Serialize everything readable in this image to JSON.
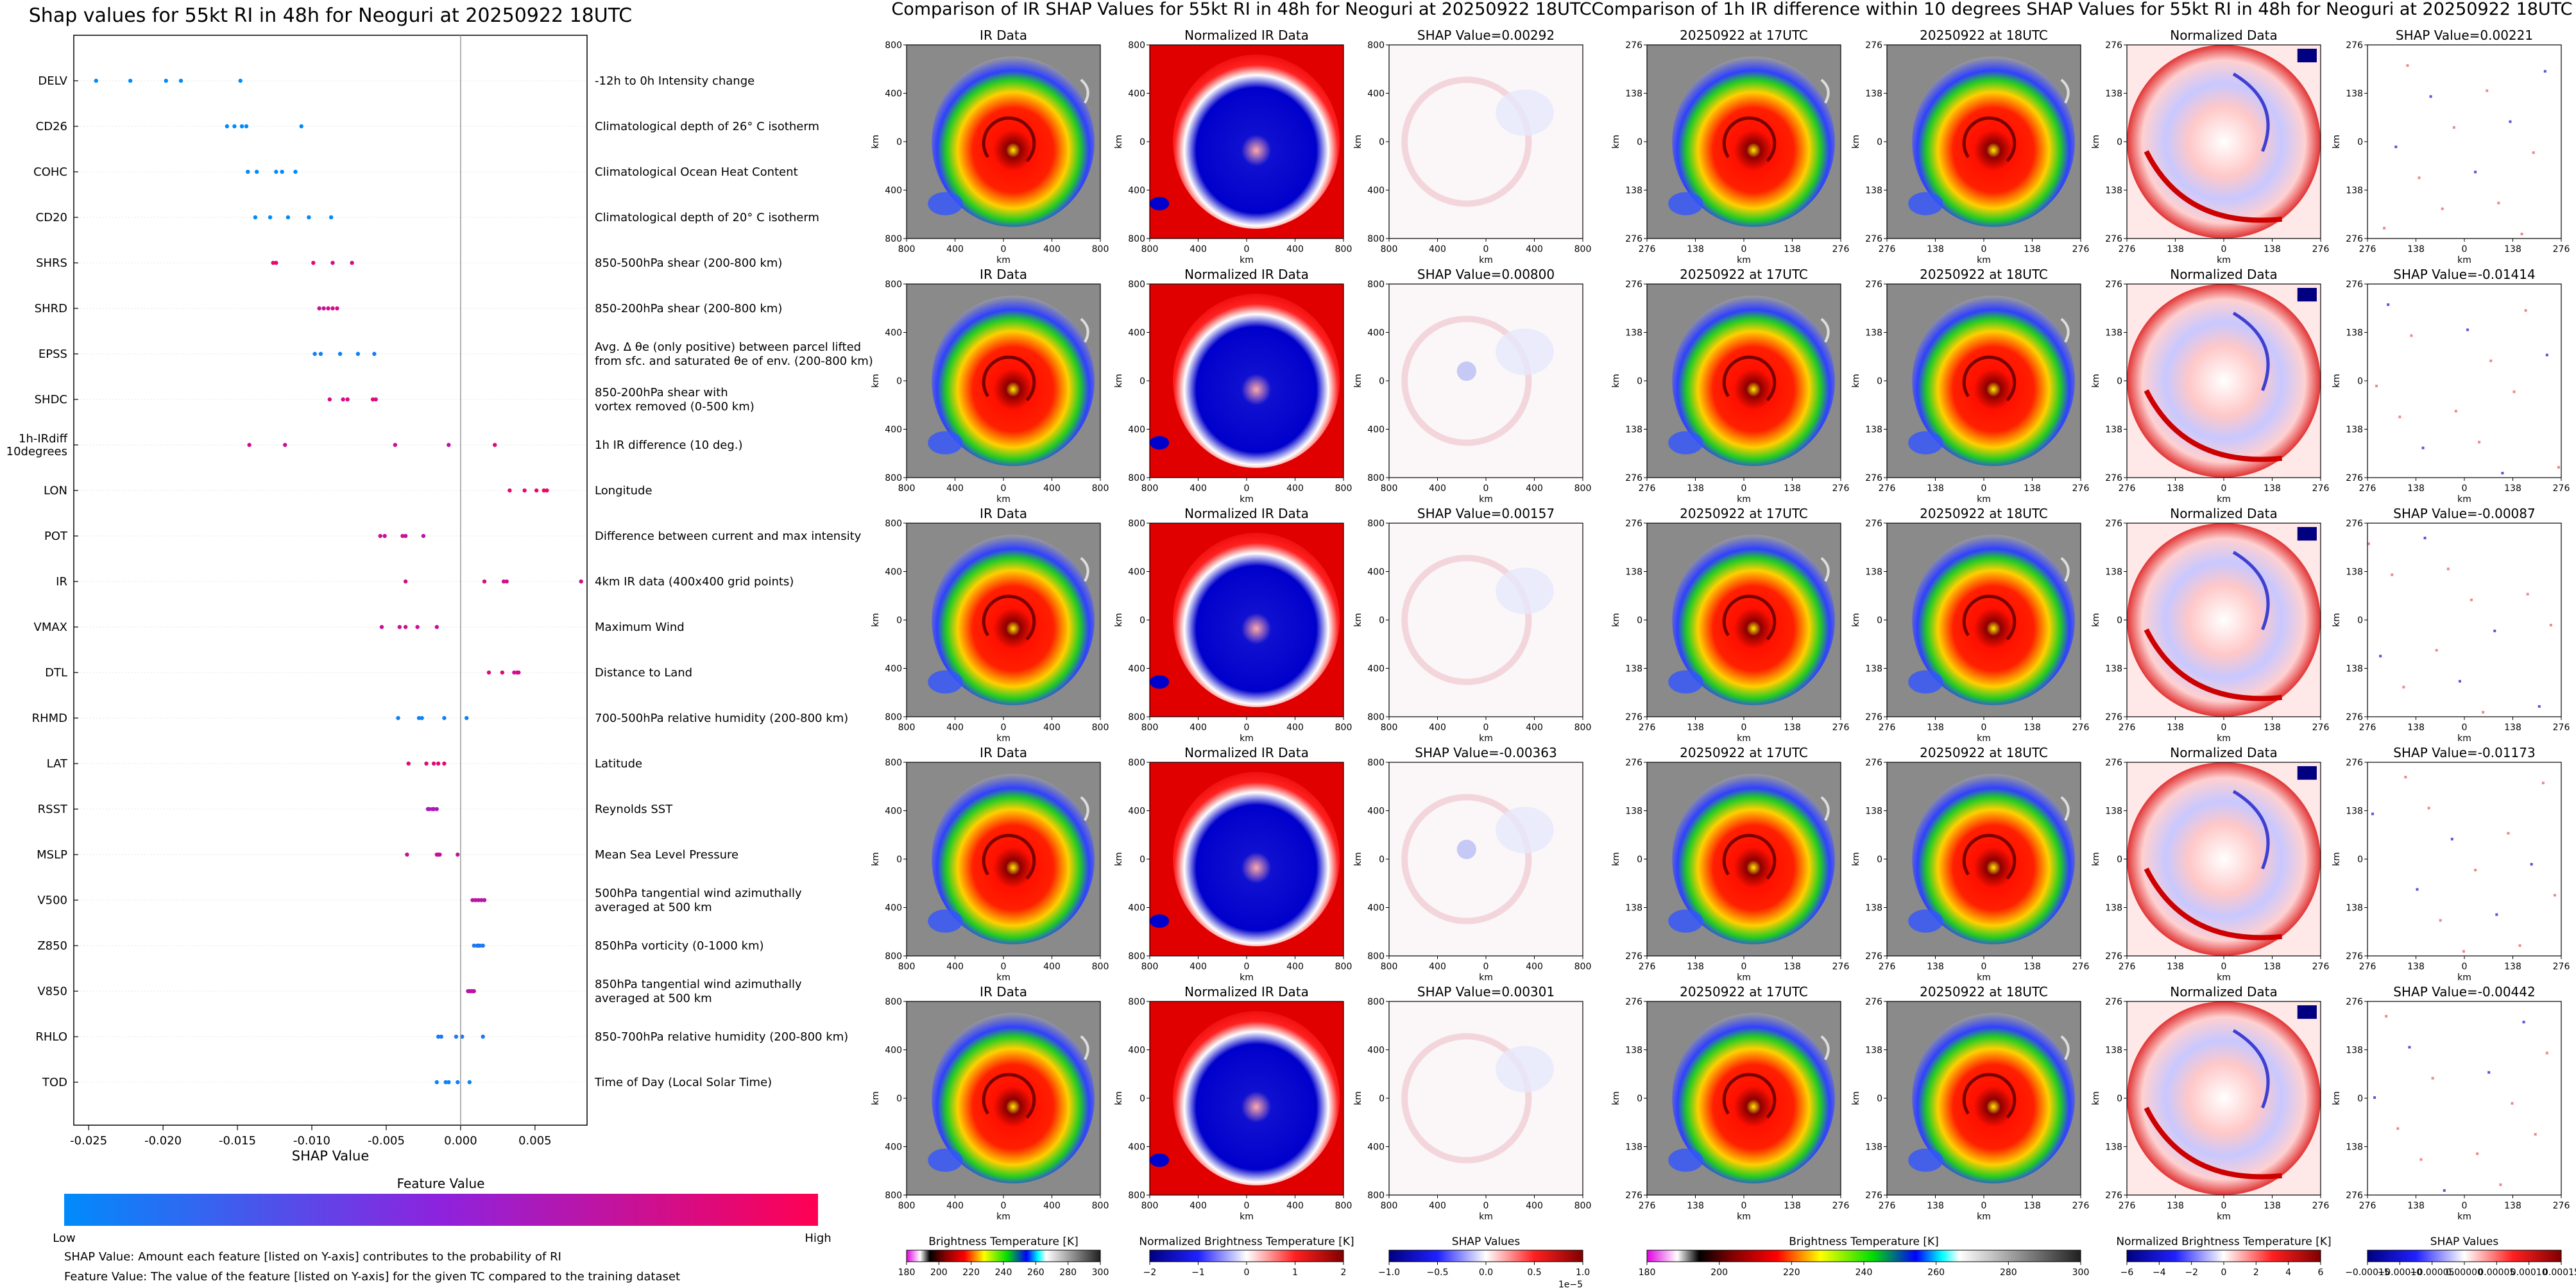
{
  "chart_data": [
    {
      "type": "scatter",
      "title": "Shap values for 55kt RI in 48h for Neoguri at 20250922 18UTC",
      "xlabel": "SHAP Value",
      "xlim": [
        -0.026,
        0.0085
      ],
      "xticks": [
        "-0.025",
        "-0.020",
        "-0.015",
        "-0.010",
        "-0.005",
        "0.000",
        "0.005"
      ],
      "xtick_values": [
        -0.025,
        -0.02,
        -0.015,
        -0.01,
        -0.005,
        0.0,
        0.005
      ],
      "legend_title": "Feature Value",
      "legend_low": "Low",
      "legend_high": "High",
      "footnote1": "SHAP Value: Amount each feature [listed on Y-axis] contributes to the probability of RI",
      "footnote2": "Feature Value: The value of the feature [listed on Y-axis] for the given TC compared to the training dataset",
      "features": [
        {
          "name": "DELV",
          "desc": [
            "-12h to 0h Intensity change"
          ],
          "points": [
            [
              -0.0245,
              0
            ],
            [
              -0.0222,
              0
            ],
            [
              -0.0198,
              0
            ],
            [
              -0.0188,
              0
            ],
            [
              -0.0148,
              0
            ]
          ]
        },
        {
          "name": "CD26",
          "desc": [
            "Climatological depth of 26° C isotherm"
          ],
          "points": [
            [
              -0.0157,
              0
            ],
            [
              -0.0152,
              0
            ],
            [
              -0.0147,
              0
            ],
            [
              -0.0144,
              0
            ],
            [
              -0.0107,
              0
            ]
          ]
        },
        {
          "name": "COHC",
          "desc": [
            "Climatological Ocean Heat Content"
          ],
          "points": [
            [
              -0.0143,
              0
            ],
            [
              -0.0137,
              0
            ],
            [
              -0.0124,
              0
            ],
            [
              -0.012,
              0
            ],
            [
              -0.0111,
              0
            ]
          ]
        },
        {
          "name": "CD20",
          "desc": [
            "Climatological depth of 20° C isotherm"
          ],
          "points": [
            [
              -0.0138,
              0
            ],
            [
              -0.0128,
              0
            ],
            [
              -0.0116,
              0
            ],
            [
              -0.0102,
              0
            ],
            [
              -0.0087,
              0
            ]
          ]
        },
        {
          "name": "SHRS",
          "desc": [
            "850-500hPa shear (200-800 km)"
          ],
          "points": [
            [
              -0.0126,
              0.9
            ],
            [
              -0.0124,
              0.9
            ],
            [
              -0.0099,
              0.9
            ],
            [
              -0.0086,
              0.8
            ],
            [
              -0.0073,
              0.85
            ]
          ]
        },
        {
          "name": "SHRD",
          "desc": [
            "850-200hPa shear (200-800 km)"
          ],
          "points": [
            [
              -0.0095,
              0.75
            ],
            [
              -0.0092,
              0.75
            ],
            [
              -0.0089,
              0.8
            ],
            [
              -0.0086,
              0.8
            ],
            [
              -0.0083,
              0.8
            ]
          ]
        },
        {
          "name": "EPSS",
          "desc": [
            "Avg. Δ θe (only positive) between parcel lifted",
            "from sfc. and saturated θe of env. (200-800 km)"
          ],
          "points": [
            [
              -0.0098,
              0.05
            ],
            [
              -0.0094,
              0.05
            ],
            [
              -0.0081,
              0.05
            ],
            [
              -0.0069,
              0.05
            ],
            [
              -0.0058,
              0.05
            ]
          ]
        },
        {
          "name": "SHDC",
          "desc": [
            "850-200hPa shear with",
            "vortex removed (0-500 km)"
          ],
          "points": [
            [
              -0.0088,
              0.8
            ],
            [
              -0.0079,
              0.8
            ],
            [
              -0.0076,
              0.85
            ],
            [
              -0.0059,
              0.85
            ],
            [
              -0.0057,
              0.85
            ]
          ]
        },
        {
          "name": "1h-IRdiff|10degrees",
          "desc": [
            "1h IR difference (10 deg.)"
          ],
          "points": [
            [
              -0.0142,
              0.8
            ],
            [
              -0.0118,
              0.75
            ],
            [
              -0.0044,
              0.75
            ],
            [
              -0.0008,
              0.7
            ],
            [
              0.0023,
              0.85
            ]
          ]
        },
        {
          "name": "LON",
          "desc": [
            "Longitude"
          ],
          "points": [
            [
              0.0033,
              0.9
            ],
            [
              0.0043,
              0.9
            ],
            [
              0.0051,
              0.9
            ],
            [
              0.0056,
              0.95
            ],
            [
              0.0058,
              0.95
            ]
          ]
        },
        {
          "name": "POT",
          "desc": [
            "Difference between current and max intensity"
          ],
          "points": [
            [
              -0.0054,
              0.75
            ],
            [
              -0.0051,
              0.75
            ],
            [
              -0.0039,
              0.8
            ],
            [
              -0.0037,
              0.75
            ],
            [
              -0.0025,
              0.7
            ]
          ]
        },
        {
          "name": "IR",
          "desc": [
            "4km IR data (400x400 grid points)"
          ],
          "points": [
            [
              -0.0037,
              0.8
            ],
            [
              0.0016,
              0.85
            ],
            [
              0.0029,
              0.8
            ],
            [
              0.0031,
              0.8
            ],
            [
              0.0081,
              0.8
            ]
          ]
        },
        {
          "name": "VMAX",
          "desc": [
            "Maximum Wind"
          ],
          "points": [
            [
              -0.0053,
              0.75
            ],
            [
              -0.0041,
              0.75
            ],
            [
              -0.0037,
              0.75
            ],
            [
              -0.0029,
              0.75
            ],
            [
              -0.0016,
              0.75
            ]
          ]
        },
        {
          "name": "DTL",
          "desc": [
            "Distance to Land"
          ],
          "points": [
            [
              0.0019,
              0.85
            ],
            [
              0.0028,
              0.85
            ],
            [
              0.0036,
              0.8
            ],
            [
              0.0038,
              0.8
            ],
            [
              0.0039,
              0.8
            ]
          ]
        },
        {
          "name": "RHMD",
          "desc": [
            "700-500hPa relative humidity (200-800 km)"
          ],
          "points": [
            [
              -0.0042,
              0.05
            ],
            [
              -0.0028,
              0.05
            ],
            [
              -0.0026,
              0.05
            ],
            [
              -0.0011,
              0.05
            ],
            [
              0.0004,
              0.05
            ]
          ]
        },
        {
          "name": "LAT",
          "desc": [
            "Latitude"
          ],
          "points": [
            [
              -0.0035,
              0.85
            ],
            [
              -0.0023,
              0.85
            ],
            [
              -0.0018,
              0.85
            ],
            [
              -0.0015,
              0.9
            ],
            [
              -0.0011,
              0.9
            ]
          ]
        },
        {
          "name": "RSST",
          "desc": [
            "Reynolds SST"
          ],
          "points": [
            [
              -0.0022,
              0.65
            ],
            [
              -0.0021,
              0.6
            ],
            [
              -0.0019,
              0.65
            ],
            [
              -0.0018,
              0.65
            ],
            [
              -0.0016,
              0.6
            ]
          ]
        },
        {
          "name": "MSLP",
          "desc": [
            "Mean Sea Level Pressure"
          ],
          "points": [
            [
              -0.0036,
              0.75
            ],
            [
              -0.0016,
              0.75
            ],
            [
              -0.0015,
              0.75
            ],
            [
              -0.0014,
              0.75
            ],
            [
              -0.0002,
              0.75
            ]
          ]
        },
        {
          "name": "V500",
          "desc": [
            "500hPa tangential wind azimuthally",
            "averaged at 500 km"
          ],
          "points": [
            [
              0.0008,
              0.7
            ],
            [
              0.001,
              0.7
            ],
            [
              0.0012,
              0.7
            ],
            [
              0.0014,
              0.7
            ],
            [
              0.0016,
              0.7
            ]
          ]
        },
        {
          "name": "Z850",
          "desc": [
            "850hPa vorticity (0-1000 km)"
          ],
          "points": [
            [
              0.0009,
              0.1
            ],
            [
              0.0011,
              0.1
            ],
            [
              0.0012,
              0.1
            ],
            [
              0.0013,
              0.1
            ],
            [
              0.0015,
              0.1
            ]
          ]
        },
        {
          "name": "V850",
          "desc": [
            "850hPa tangential wind azimuthally",
            "averaged at 500 km"
          ],
          "points": [
            [
              0.0005,
              0.7
            ],
            [
              0.0006,
              0.7
            ],
            [
              0.0007,
              0.7
            ],
            [
              0.0008,
              0.7
            ],
            [
              0.0009,
              0.7
            ]
          ]
        },
        {
          "name": "RHLO",
          "desc": [
            "850-700hPa relative humidity (200-800 km)"
          ],
          "points": [
            [
              -0.0015,
              0.1
            ],
            [
              -0.0013,
              0.1
            ],
            [
              -0.0003,
              0.1
            ],
            [
              0.0001,
              0.1
            ],
            [
              0.0015,
              0.1
            ]
          ]
        },
        {
          "name": "TOD",
          "desc": [
            "Time of Day (Local Solar Time)"
          ],
          "points": [
            [
              -0.0016,
              0.05
            ],
            [
              -0.001,
              0.05
            ],
            [
              -0.0008,
              0.05
            ],
            [
              -0.0002,
              0.05
            ],
            [
              0.0006,
              0.05
            ]
          ]
        }
      ]
    },
    {
      "type": "heatmap",
      "title": "Comparison of IR SHAP Values for 55kt RI in 48h for Neoguri at 20250922 18UTC",
      "columns": [
        "IR Data",
        "Normalized IR Data",
        "SHAP Value"
      ],
      "shap_values": [
        "0.00292",
        "0.00800",
        "0.00157",
        "-0.00363",
        "0.00301"
      ],
      "x_ticks": [
        "800",
        "400",
        "0",
        "400",
        "800"
      ],
      "y_ticks": [
        "800",
        "400",
        "0",
        "400",
        "800"
      ],
      "axis_label": "km",
      "colorbars": [
        {
          "label": "Brightness Temperature [K]",
          "ticks": [
            "180",
            "200",
            "220",
            "240",
            "260",
            "280",
            "300"
          ]
        },
        {
          "label": "Normalized Brightness Temperature [K]",
          "ticks": [
            "−2",
            "−1",
            "0",
            "1",
            "2"
          ]
        },
        {
          "label": "SHAP Values",
          "ticks": [
            "−1.0",
            "−0.5",
            "0.0",
            "0.5",
            "1.0"
          ],
          "multiplier": "1e−5"
        }
      ]
    },
    {
      "type": "heatmap",
      "title": "Comparison of 1h IR difference within 10 degrees SHAP Values for 55kt RI in 48h for Neoguri at 20250922 18UTC",
      "columns": [
        "20250922 at 17UTC",
        "20250922 at 18UTC",
        "Normalized Data",
        "SHAP Value"
      ],
      "shap_values": [
        "0.00221",
        "-0.01414",
        "-0.00087",
        "-0.01173",
        "-0.00442"
      ],
      "x_ticks": [
        "276",
        "138",
        "0",
        "138",
        "276"
      ],
      "y_ticks": [
        "276",
        "138",
        "0",
        "138",
        "276"
      ],
      "axis_label": "km",
      "colorbars": [
        {
          "label": "Brightness Temperature [K]",
          "ticks": [
            "180",
            "200",
            "220",
            "240",
            "260",
            "280",
            "300"
          ]
        },
        {
          "label": "Normalized Brightness Temperature [K]",
          "ticks": [
            "−6",
            "−4",
            "−2",
            "0",
            "2",
            "4",
            "6"
          ]
        },
        {
          "label": "SHAP Values",
          "ticks": [
            "−0.00015",
            "−0.00010",
            "−0.00005",
            "0.00000",
            "0.00005",
            "0.00010",
            "0.00015"
          ]
        }
      ]
    }
  ],
  "colors": {
    "feature_low": "#008bfb",
    "feature_mid": "#8e22dd",
    "feature_high": "#ff0052",
    "zero_line": "#999999"
  }
}
